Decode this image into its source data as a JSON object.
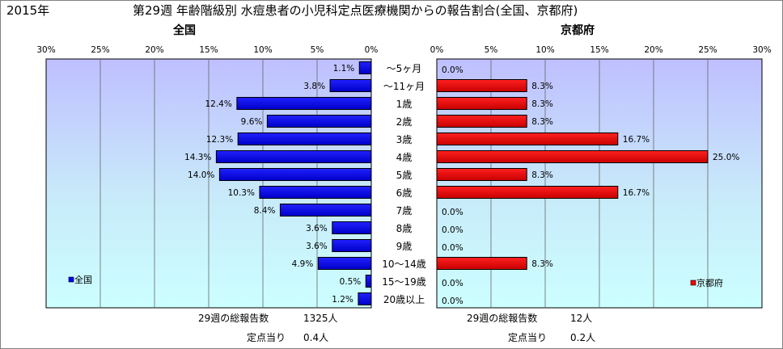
{
  "header": {
    "year": "2015年",
    "title": "第29週 年齢階級別 水痘患者の小児科定点医療機関からの報告割合(全国、京都府)"
  },
  "chart_data": [
    {
      "type": "bar",
      "orientation": "horizontal",
      "direction": "right-to-left",
      "title": "全国",
      "legend": "全国",
      "legend_position": "bottom-left",
      "color": "#0000FF",
      "xlim": [
        0,
        30
      ],
      "ticks": [
        "30%",
        "25%",
        "20%",
        "15%",
        "10%",
        "5%",
        "0%"
      ],
      "grid": true,
      "values": [
        1.1,
        3.8,
        12.4,
        9.6,
        12.3,
        14.3,
        14.0,
        10.3,
        8.4,
        3.6,
        3.6,
        4.9,
        0.5,
        1.2
      ],
      "labels": [
        "1.1%",
        "3.8%",
        "12.4%",
        "9.6%",
        "12.3%",
        "14.3%",
        "14.0%",
        "10.3%",
        "8.4%",
        "3.6%",
        "3.6%",
        "4.9%",
        "0.5%",
        "1.2%"
      ]
    },
    {
      "type": "bar",
      "orientation": "horizontal",
      "direction": "left-to-right",
      "title": "京都府",
      "legend": "京都府",
      "legend_position": "bottom-right",
      "color": "#FF0000",
      "xlim": [
        0,
        30
      ],
      "ticks": [
        "0%",
        "5%",
        "10%",
        "15%",
        "20%",
        "25%",
        "30%"
      ],
      "grid": true,
      "values": [
        0.0,
        8.3,
        8.3,
        8.3,
        16.7,
        25.0,
        8.3,
        16.7,
        0.0,
        0.0,
        0.0,
        8.3,
        0.0,
        0.0
      ],
      "labels": [
        "0.0%",
        "8.3%",
        "8.3%",
        "8.3%",
        "16.7%",
        "25.0%",
        "8.3%",
        "16.7%",
        "0.0%",
        "0.0%",
        "0.0%",
        "8.3%",
        "0.0%",
        "0.0%"
      ]
    }
  ],
  "categories": [
    "～5ヶ月",
    "～11ヶ月",
    "1歳",
    "2歳",
    "3歳",
    "4歳",
    "5歳",
    "6歳",
    "7歳",
    "8歳",
    "9歳",
    "10～14歳",
    "15～19歳",
    "20歳以上"
  ],
  "footer": {
    "national_total_label": "29週の総報告数",
    "national_total_value": "1325人",
    "national_per_label": "定点当り",
    "national_per_value": "0.4人",
    "kyoto_total_label": "29週の総報告数",
    "kyoto_total_value": "12人",
    "kyoto_per_label": "定点当り",
    "kyoto_per_value": "0.2人"
  }
}
